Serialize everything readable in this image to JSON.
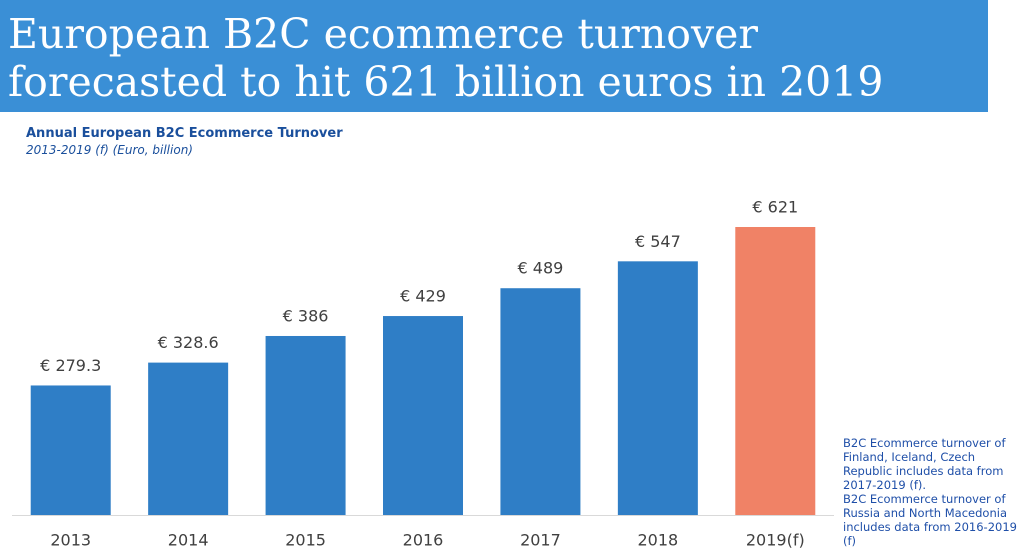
{
  "chart_data": {
    "type": "bar",
    "title": [
      "European B2C ecommerce turnover",
      "forecasted to hit 621 billion euros in 2019"
    ],
    "chart_title": "Annual European B2C Ecommerce Turnover",
    "subtitle": "2013-2019 (f) (Euro, billion)",
    "categories": [
      "2013",
      "2014",
      "2015",
      "2016",
      "2017",
      "2018",
      "2019(f)"
    ],
    "values": [
      279.3,
      328.6,
      386,
      429,
      489,
      547,
      621
    ],
    "value_labels": [
      "€ 279.3",
      "€ 328.6",
      "€ 386",
      "€ 429",
      "€ 489",
      "€ 547",
      "€ 621"
    ],
    "colors": [
      "#2f7ec6",
      "#2f7ec6",
      "#2f7ec6",
      "#2f7ec6",
      "#2f7ec6",
      "#2f7ec6",
      "#f08266"
    ],
    "notes": [
      "B2C Ecommerce turnover of Finland, Iceland, Czech Republic includes data from 2017-2019 (f).",
      "B2C Ecommerce turnover of Russia and North Macedonia includes data from 2016-2019 (f)"
    ]
  }
}
